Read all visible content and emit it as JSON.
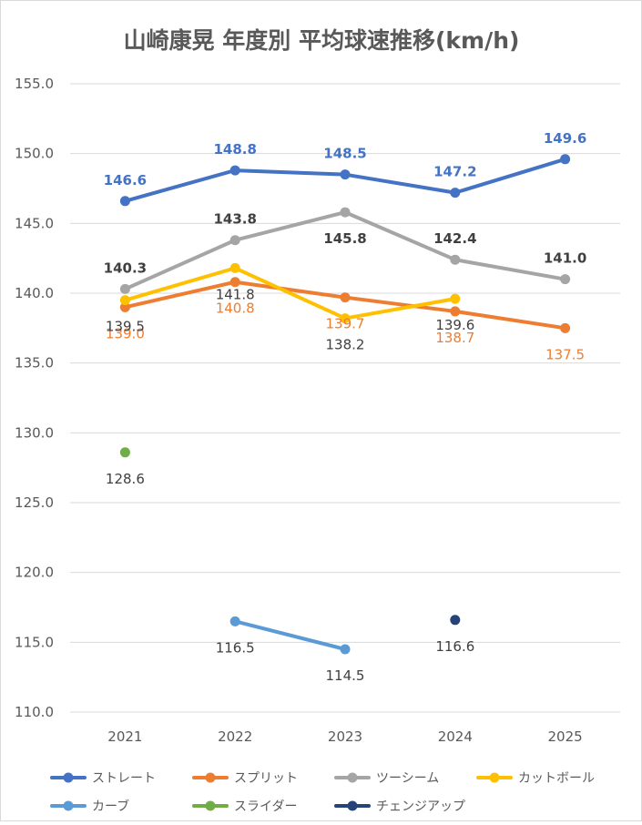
{
  "chart_data": {
    "type": "line",
    "title": "山崎康晃 年度別 平均球速推移(km/h)",
    "xlabel": "",
    "ylabel": "",
    "categories": [
      "2021",
      "2022",
      "2023",
      "2024",
      "2025"
    ],
    "ylim": [
      110.0,
      155.0
    ],
    "yticks": [
      "110.0",
      "115.0",
      "120.0",
      "125.0",
      "130.0",
      "135.0",
      "140.0",
      "145.0",
      "150.0",
      "155.0"
    ],
    "grid": true,
    "legend_position": "bottom",
    "series": [
      {
        "name": "ストレート",
        "color": "#4472c4",
        "values": [
          146.6,
          148.8,
          148.5,
          147.2,
          149.6
        ],
        "label_color": "#4472c4",
        "label_bold": true
      },
      {
        "name": "スプリット",
        "color": "#ed7d31",
        "values": [
          139.0,
          140.8,
          139.7,
          138.7,
          137.5
        ],
        "label_color": "#ed7d31",
        "label_bold": false
      },
      {
        "name": "ツーシーム",
        "color": "#a5a5a5",
        "values": [
          140.3,
          143.8,
          145.8,
          142.4,
          141.0
        ],
        "label_color": "#404040",
        "label_bold": true
      },
      {
        "name": "カットボール",
        "color": "#ffc000",
        "values": [
          139.5,
          141.8,
          138.2,
          139.6,
          null
        ],
        "label_color": "#404040",
        "label_bold": false
      },
      {
        "name": "カーブ",
        "color": "#5b9bd5",
        "values": [
          null,
          116.5,
          114.5,
          null,
          null
        ],
        "label_color": "#404040",
        "label_bold": false
      },
      {
        "name": "スライダー",
        "color": "#70ad47",
        "values": [
          128.6,
          null,
          null,
          null,
          null
        ],
        "label_color": "#404040",
        "label_bold": false
      },
      {
        "name": "チェンジアップ",
        "color": "#264478",
        "values": [
          null,
          null,
          null,
          116.6,
          null
        ],
        "label_color": "#404040",
        "label_bold": false
      }
    ],
    "data_labels": [
      {
        "series": "ストレート",
        "labels": [
          "146.6",
          "148.8",
          "148.5",
          "147.2",
          "149.6"
        ],
        "placement": [
          "above",
          "above",
          "above",
          "above",
          "above"
        ]
      },
      {
        "series": "スプリット",
        "labels": [
          "139.0",
          "140.8",
          "139.7",
          "138.7",
          "137.5"
        ],
        "placement": [
          "below",
          "below",
          "below",
          "below",
          "below"
        ]
      },
      {
        "series": "ツーシーム",
        "labels": [
          "140.3",
          "143.8",
          "145.8",
          "142.4",
          "141.0"
        ],
        "placement": [
          "above",
          "above",
          "below",
          "above",
          "above"
        ]
      },
      {
        "series": "カットボール",
        "labels": [
          "139.5",
          "141.8",
          "138.2",
          "139.6",
          ""
        ],
        "placement": [
          "below",
          "below",
          "below",
          "below",
          "below"
        ]
      },
      {
        "series": "カーブ",
        "labels": [
          "",
          "116.5",
          "114.5",
          "",
          ""
        ],
        "placement": [
          "below",
          "below",
          "below",
          "below",
          "below"
        ]
      },
      {
        "series": "スライダー",
        "labels": [
          "128.6",
          "",
          "",
          "",
          ""
        ],
        "placement": [
          "below",
          "below",
          "below",
          "below",
          "below"
        ]
      },
      {
        "series": "チェンジアップ",
        "labels": [
          "",
          "",
          "",
          "116.6",
          ""
        ],
        "placement": [
          "below",
          "below",
          "below",
          "below",
          "below"
        ]
      }
    ]
  }
}
